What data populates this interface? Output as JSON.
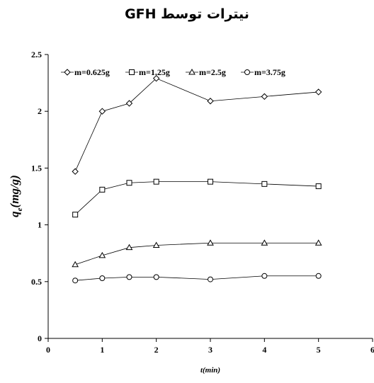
{
  "chart_data": {
    "type": "line",
    "title": "نیترات توسط GFH",
    "xlabel": "t(min)",
    "ylabel_main": "q",
    "ylabel_sub": "e",
    "ylabel_rest": "(mg/g)",
    "xlim": [
      0,
      6
    ],
    "ylim": [
      0,
      2.5
    ],
    "xticks": [
      "0",
      "1",
      "2",
      "3",
      "4",
      "5",
      "6"
    ],
    "yticks": [
      "0",
      "0.5",
      "1",
      "1.5",
      "2",
      "2.5"
    ],
    "grid": false,
    "legend_position": "top",
    "x": [
      0.5,
      1,
      1.5,
      2,
      3,
      4,
      5
    ],
    "series": [
      {
        "name": "m=0.625g",
        "marker": "diamond",
        "values": [
          1.47,
          2.0,
          2.07,
          2.29,
          2.09,
          2.13,
          2.17
        ]
      },
      {
        "name": "m=1.25g",
        "marker": "square",
        "values": [
          1.09,
          1.31,
          1.37,
          1.38,
          1.38,
          1.36,
          1.34
        ]
      },
      {
        "name": "m=2.5g",
        "marker": "triangle",
        "values": [
          0.65,
          0.73,
          0.8,
          0.82,
          0.84,
          0.84,
          0.84
        ]
      },
      {
        "name": "m=3.75g",
        "marker": "circle",
        "values": [
          0.51,
          0.53,
          0.54,
          0.54,
          0.52,
          0.55,
          0.55
        ]
      }
    ]
  }
}
